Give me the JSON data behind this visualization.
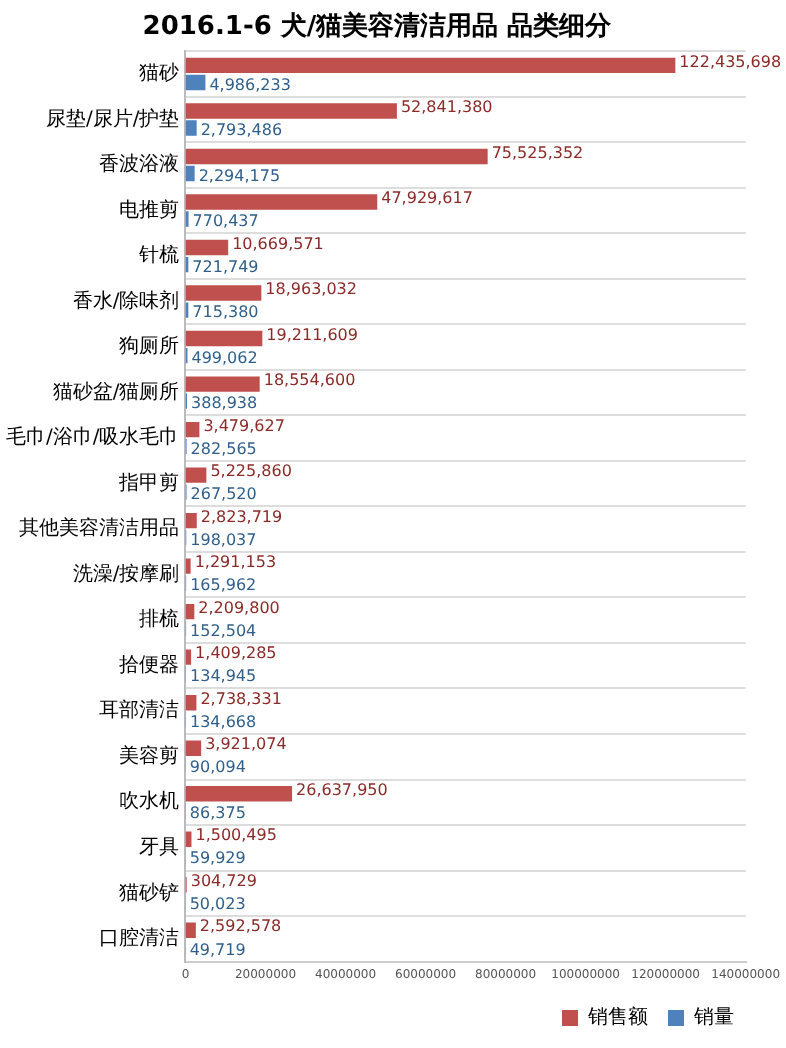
{
  "chart_data": {
    "type": "bar",
    "orientation": "horizontal",
    "title": "2016.1-6 犬/猫美容清洁用品 品类细分",
    "categories": [
      "猫砂",
      "尿垫/尿片/护垫",
      "香波浴液",
      "电推剪",
      "针梳",
      "香水/除味剂",
      "狗厕所",
      "猫砂盆/猫厕所",
      "毛巾/浴巾/吸水毛巾",
      "指甲剪",
      "其他美容清洁用品",
      "洗澡/按摩刷",
      "排梳",
      "拾便器",
      "耳部清洁",
      "美容剪",
      "吹水机",
      "牙具",
      "猫砂铲",
      "口腔清洁"
    ],
    "series": [
      {
        "name": "销售额",
        "color": "#c0504d",
        "values": [
          122435698,
          52841380,
          75525352,
          47929617,
          10669571,
          18963032,
          19211609,
          18554600,
          3479627,
          5225860,
          2823719,
          1291153,
          2209800,
          1409285,
          2738331,
          3921074,
          26637950,
          1500495,
          304729,
          2592578
        ],
        "value_labels": [
          "122,435,698",
          "52,841,380",
          "75,525,352",
          "47,929,617",
          "10,669,571",
          "18,963,032",
          "19,211,609",
          "18,554,600",
          "3,479,627",
          "5,225,860",
          "2,823,719",
          "1,291,153",
          "2,209,800",
          "1,409,285",
          "2,738,331",
          "3,921,074",
          "26,637,950",
          "1,500,495",
          "304,729",
          "2,592,578"
        ]
      },
      {
        "name": "销量",
        "color": "#4f81bd",
        "values": [
          4986233,
          2793486,
          2294175,
          770437,
          721749,
          715380,
          499062,
          388938,
          282565,
          267520,
          198037,
          165962,
          152504,
          134945,
          134668,
          90094,
          86375,
          59929,
          50023,
          49719
        ],
        "value_labels": [
          "4,986,233",
          "2,793,486",
          "2,294,175",
          "770,437",
          "721,749",
          "715,380",
          "499,062",
          "388,938",
          "282,565",
          "267,520",
          "198,037",
          "165,962",
          "152,504",
          "134,945",
          "134,668",
          "90,094",
          "86,375",
          "59,929",
          "50,023",
          "49,719"
        ]
      }
    ],
    "xlim": [
      0,
      140000000
    ],
    "xticks": [
      0,
      20000000,
      40000000,
      60000000,
      80000000,
      100000000,
      120000000,
      140000000
    ],
    "grid": "y",
    "legend": "bottom right"
  }
}
